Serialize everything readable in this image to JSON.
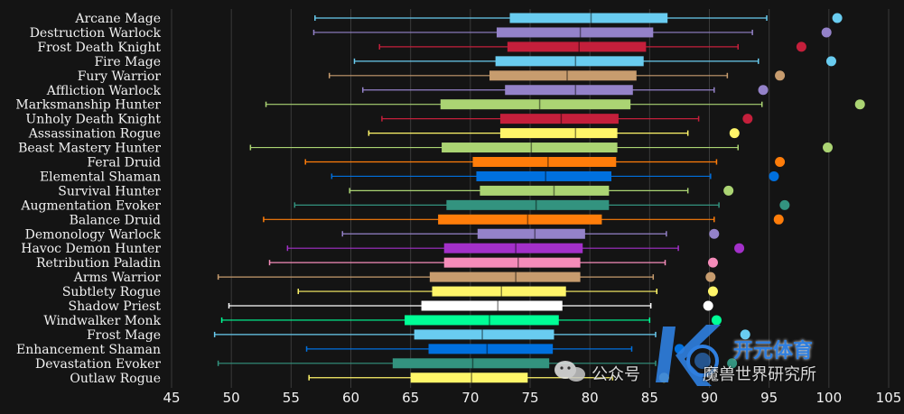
{
  "chart_data": {
    "type": "boxplot",
    "orientation": "horizontal",
    "x_ticks": [
      45,
      50,
      55,
      60,
      65,
      70,
      75,
      80,
      85,
      90,
      95,
      100,
      105
    ],
    "xlim": [
      45,
      105
    ],
    "grid": "vertical",
    "series": [
      {
        "name": "Arcane Mage",
        "color": "#69ccf0",
        "whisker_low": 57.0,
        "q1": 73.3,
        "median": 80.1,
        "q3": 86.5,
        "whisker_high": 94.8,
        "max": 100.7
      },
      {
        "name": "Destruction Warlock",
        "color": "#9482c9",
        "whisker_low": 56.9,
        "q1": 72.2,
        "median": 79.2,
        "q3": 85.3,
        "whisker_high": 93.6,
        "max": 99.8
      },
      {
        "name": "Frost Death Knight",
        "color": "#c41f3b",
        "whisker_low": 62.4,
        "q1": 73.1,
        "median": 79.1,
        "q3": 84.7,
        "whisker_high": 92.4,
        "max": 97.7
      },
      {
        "name": "Fire Mage",
        "color": "#69ccf0",
        "whisker_low": 60.3,
        "q1": 72.1,
        "median": 78.8,
        "q3": 84.5,
        "whisker_high": 94.1,
        "max": 100.2
      },
      {
        "name": "Fury Warrior",
        "color": "#c79c6e",
        "whisker_low": 58.2,
        "q1": 71.6,
        "median": 78.1,
        "q3": 83.9,
        "whisker_high": 91.5,
        "max": 95.9
      },
      {
        "name": "Affliction Warlock",
        "color": "#9482c9",
        "whisker_low": 61.0,
        "q1": 72.9,
        "median": 78.8,
        "q3": 83.6,
        "whisker_high": 90.4,
        "max": 94.5
      },
      {
        "name": "Marksmanship Hunter",
        "color": "#abd473",
        "whisker_low": 52.9,
        "q1": 67.5,
        "median": 75.8,
        "q3": 83.4,
        "whisker_high": 94.4,
        "max": 102.6
      },
      {
        "name": "Unholy Death Knight",
        "color": "#c41f3b",
        "whisker_low": 62.6,
        "q1": 72.5,
        "median": 77.6,
        "q3": 82.4,
        "whisker_high": 89.1,
        "max": 93.2
      },
      {
        "name": "Assassination Rogue",
        "color": "#fff569",
        "whisker_low": 61.5,
        "q1": 72.5,
        "median": 78.8,
        "q3": 82.3,
        "whisker_high": 88.2,
        "max": 92.1
      },
      {
        "name": "Beast Mastery Hunter",
        "color": "#abd473",
        "whisker_low": 51.6,
        "q1": 67.6,
        "median": 75.1,
        "q3": 82.3,
        "whisker_high": 92.4,
        "max": 99.9
      },
      {
        "name": "Feral Druid",
        "color": "#ff7d0a",
        "whisker_low": 56.2,
        "q1": 70.2,
        "median": 76.5,
        "q3": 82.2,
        "whisker_high": 90.6,
        "max": 95.9
      },
      {
        "name": "Elemental Shaman",
        "color": "#0070de",
        "whisker_low": 58.4,
        "q1": 70.5,
        "median": 76.3,
        "q3": 81.8,
        "whisker_high": 90.1,
        "max": 95.4
      },
      {
        "name": "Survival Hunter",
        "color": "#abd473",
        "whisker_low": 59.9,
        "q1": 70.8,
        "median": 77.0,
        "q3": 81.6,
        "whisker_high": 88.2,
        "max": 91.6
      },
      {
        "name": "Augmentation Evoker",
        "color": "#33937f",
        "whisker_low": 55.3,
        "q1": 68.0,
        "median": 75.5,
        "q3": 81.6,
        "whisker_high": 90.8,
        "max": 96.3
      },
      {
        "name": "Balance Druid",
        "color": "#ff7d0a",
        "whisker_low": 52.7,
        "q1": 67.3,
        "median": 74.8,
        "q3": 81.0,
        "whisker_high": 90.4,
        "max": 95.8
      },
      {
        "name": "Demonology Warlock",
        "color": "#9482c9",
        "whisker_low": 59.3,
        "q1": 70.6,
        "median": 75.4,
        "q3": 79.6,
        "whisker_high": 86.4,
        "max": 90.4
      },
      {
        "name": "Havoc Demon Hunter",
        "color": "#a330c9",
        "whisker_low": 54.7,
        "q1": 67.8,
        "median": 73.8,
        "q3": 79.4,
        "whisker_high": 87.4,
        "max": 92.5
      },
      {
        "name": "Retribution Paladin",
        "color": "#f58cba",
        "whisker_low": 53.2,
        "q1": 67.8,
        "median": 74.0,
        "q3": 79.2,
        "whisker_high": 86.3,
        "max": 90.3
      },
      {
        "name": "Arms Warrior",
        "color": "#c79c6e",
        "whisker_low": 48.9,
        "q1": 66.6,
        "median": 73.8,
        "q3": 79.2,
        "whisker_high": 85.3,
        "max": 90.1
      },
      {
        "name": "Subtlety Rogue",
        "color": "#fff569",
        "whisker_low": 55.6,
        "q1": 66.8,
        "median": 72.6,
        "q3": 78.0,
        "whisker_high": 85.6,
        "max": 90.3
      },
      {
        "name": "Shadow Priest",
        "color": "#ffffff",
        "whisker_low": 49.8,
        "q1": 65.9,
        "median": 72.3,
        "q3": 77.7,
        "whisker_high": 85.1,
        "max": 89.9
      },
      {
        "name": "Windwalker Monk",
        "color": "#00ff96",
        "whisker_low": 49.2,
        "q1": 64.5,
        "median": 71.6,
        "q3": 77.4,
        "whisker_high": 85.0,
        "max": 90.6
      },
      {
        "name": "Frost Mage",
        "color": "#69ccf0",
        "whisker_low": 48.6,
        "q1": 65.3,
        "median": 71.0,
        "q3": 77.0,
        "whisker_high": 85.5,
        "max": 93.0
      },
      {
        "name": "Enhancement Shaman",
        "color": "#0070de",
        "whisker_low": 56.3,
        "q1": 66.5,
        "median": 71.4,
        "q3": 76.9,
        "whisker_high": 83.5,
        "max": 87.5
      },
      {
        "name": "Devastation Evoker",
        "color": "#33937f",
        "whisker_low": 48.9,
        "q1": 63.5,
        "median": 70.2,
        "q3": 76.6,
        "whisker_high": 85.5,
        "max": 91.9
      },
      {
        "name": "Outlaw Rogue",
        "color": "#fff569",
        "whisker_low": 56.5,
        "q1": 65.0,
        "median": 70.1,
        "q3": 74.8,
        "whisker_high": 81.9,
        "max": 86.2
      }
    ]
  },
  "watermark": {
    "left_text": "公众号",
    "right_text": "魔兽世界研究所",
    "brand_text": "开元体育"
  }
}
